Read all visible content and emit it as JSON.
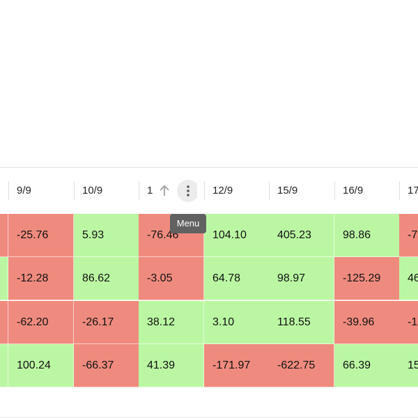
{
  "columns": [
    "9/9",
    "10/9",
    "1",
    "12/9",
    "15/9",
    "16/9",
    "17"
  ],
  "rows": [
    [
      "-25.76",
      "5.93",
      "-76.46",
      "104.10",
      "405.23",
      "98.86",
      "-7"
    ],
    [
      "-12.28",
      "86.62",
      "-3.05",
      "64.78",
      "98.97",
      "-125.29",
      "46"
    ],
    [
      "-62.20",
      "-26.17",
      "38.12",
      "3.10",
      "118.55",
      "-39.96",
      "-1"
    ],
    [
      "100.24",
      "-66.37",
      "41.39",
      "-171.97",
      "-622.75",
      "66.39",
      "15"
    ]
  ],
  "tooltip": "Menu"
}
